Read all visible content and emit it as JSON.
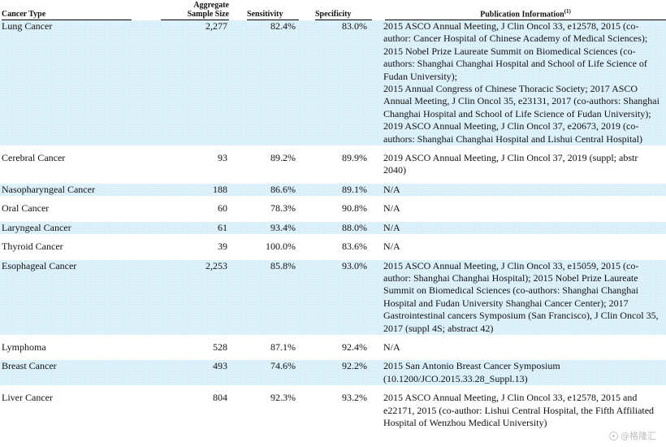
{
  "headers": {
    "cancer_type": "Cancer Type",
    "sample_size_line1": "Aggregate",
    "sample_size_line2": "Sample Size",
    "sensitivity": "Sensitivity",
    "specificity": "Specificity",
    "publication": "Publication Information",
    "publication_note": "(1)"
  },
  "rows": [
    {
      "type": "Lung Cancer",
      "size": "2,277",
      "sensitivity": "82.4%",
      "specificity": "83.0%",
      "pub": "2015 ASCO Annual Meeting, J Clin Oncol 33, e12578, 2015 (co-author: Cancer Hospital of Chinese Academy of Medical Sciences); 2015 Nobel Prize Laureate Summit on Biomedical Sciences (co-authors: Shanghai Changhai Hospital and School of Life Science of Fudan University);",
      "pub2": "2015 Annual Congress of Chinese Thoracic Society; 2017 ASCO Annual Meeting, J Clin Oncol 35, e23131, 2017 (co-authors: Shanghai Changhai Hospital and School of Life Science of Fudan University); 2019 ASCO Annual Meeting, J Clin Oncol 37, e20673, 2019 (co-authors: Shanghai Changhai Hospital and Lishui Central Hospital)",
      "shaded": true
    },
    {
      "type": "Cerebral Cancer",
      "size": "93",
      "sensitivity": "89.2%",
      "specificity": "89.9%",
      "pub": "2019 ASCO Annual Meeting, J Clin Oncol 37, 2019 (suppl; abstr 2040)",
      "shaded": false
    },
    {
      "type": "Nasopharyngeal Cancer",
      "size": "188",
      "sensitivity": "86.6%",
      "specificity": "89.1%",
      "pub": "N/A",
      "shaded": true
    },
    {
      "type": "Oral Cancer",
      "size": "60",
      "sensitivity": "78.3%",
      "specificity": "90.8%",
      "pub": "N/A",
      "shaded": false
    },
    {
      "type": "Laryngeal Cancer",
      "size": "61",
      "sensitivity": "93.4%",
      "specificity": "88.0%",
      "pub": "N/A",
      "shaded": true
    },
    {
      "type": "Thyroid Cancer",
      "size": "39",
      "sensitivity": "100.0%",
      "specificity": "83.6%",
      "pub": "N/A",
      "shaded": false
    },
    {
      "type": "Esophageal Cancer",
      "size": "2,253",
      "sensitivity": "85.8%",
      "specificity": "93.0%",
      "pub": "2015 ASCO Annual Meeting, J Clin Oncol 33, e15059, 2015 (co-author: Shanghai Changhai Hospital); 2015 Nobel Prize Laureate Summit on Biomedical Sciences (co-authors: Shanghai Changhai Hospital and Fudan University Shanghai Cancer Center); 2017 Gastrointestinal cancers Symposium (San Francisco), J Clin Oncol 35, 2017 (suppl 4S; abstract 42)",
      "shaded": true
    },
    {
      "type": "Lymphoma",
      "size": "528",
      "sensitivity": "87.1%",
      "specificity": "92.4%",
      "pub": "N/A",
      "shaded": false
    },
    {
      "type": "Breast Cancer",
      "size": "493",
      "sensitivity": "74.6%",
      "specificity": "92.2%",
      "pub": "2015 San Antonio Breast Cancer Symposium (10.1200/JCO.2015.33.28_Suppl.13)",
      "shaded": true
    },
    {
      "type": "Liver Cancer",
      "size": "804",
      "sensitivity": "92.3%",
      "specificity": "93.2%",
      "pub": "2015 ASCO Annual Meeting, J Clin Oncol 33, e12578, 2015 and e22171, 2015 (co-author: Lishui Central Hospital, the Fifth Affiliated Hospital of Wenzhou Medical University)",
      "shaded": false
    }
  ],
  "watermark": "@格隆汇"
}
